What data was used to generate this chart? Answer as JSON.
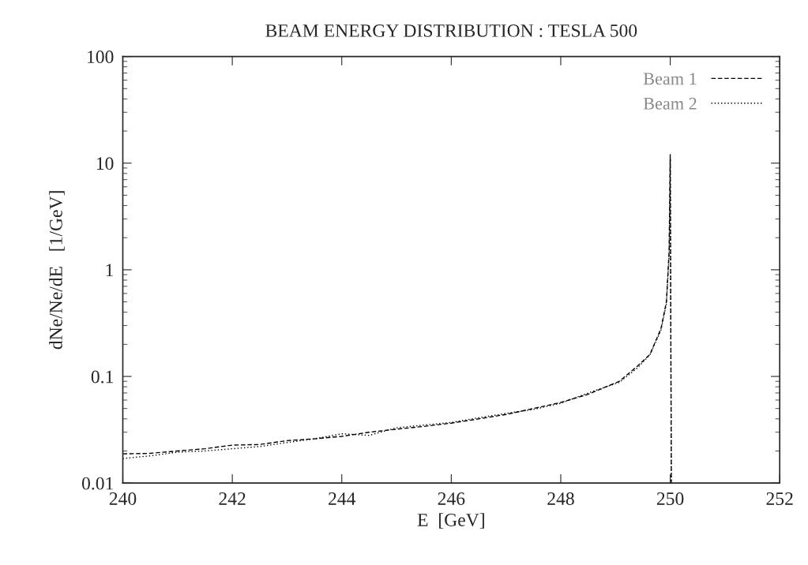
{
  "chart_data": {
    "type": "line",
    "title": "BEAM ENERGY DISTRIBUTION : TESLA 500",
    "xlabel": "E  [GeV]",
    "ylabel": "dNe/Ne/dE   [1/GeV]",
    "xlim": [
      240,
      252
    ],
    "xticks": [
      240,
      242,
      244,
      246,
      248,
      250,
      252
    ],
    "ylim": [
      0.01,
      100
    ],
    "yticks": [
      {
        "value": 0.01,
        "label": "0.01"
      },
      {
        "value": 0.1,
        "label": "0.1"
      },
      1,
      10,
      100
    ],
    "log": "y",
    "grid": false,
    "legend": "top right",
    "series": [
      {
        "name": "Beam 1",
        "color": "#000000",
        "line_style": "dashed",
        "x": [
          240,
          240.5,
          241,
          241.5,
          242,
          242.5,
          243,
          243.5,
          244,
          244.5,
          245,
          245.5,
          246,
          246.5,
          247,
          247.5,
          248,
          248.5,
          249.07,
          249.4,
          249.63,
          249.83,
          249.93,
          249.98,
          250,
          250.02
        ],
        "values": [
          0.0188,
          0.019,
          0.02,
          0.021,
          0.0227,
          0.023,
          0.025,
          0.026,
          0.0274,
          0.03,
          0.032,
          0.034,
          0.0365,
          0.04,
          0.044,
          0.05,
          0.057,
          0.068,
          0.09,
          0.125,
          0.161,
          0.28,
          0.5,
          1.5,
          12,
          0.01
        ]
      },
      {
        "name": "Beam 2",
        "color": "#000000",
        "line_style": "dotted",
        "x": [
          240,
          240.5,
          241,
          241.5,
          242,
          242.5,
          243,
          243.5,
          244,
          244.5,
          245,
          245.5,
          246,
          246.5,
          247,
          247.5,
          248,
          248.5,
          249.07,
          249.4,
          249.63,
          249.83,
          249.93,
          249.98,
          250,
          250.02
        ],
        "values": [
          0.017,
          0.018,
          0.0195,
          0.02,
          0.021,
          0.022,
          0.024,
          0.026,
          0.029,
          0.028,
          0.033,
          0.035,
          0.037,
          0.041,
          0.045,
          0.049,
          0.056,
          0.07,
          0.088,
          0.12,
          0.16,
          0.27,
          0.48,
          1.4,
          11,
          0.01
        ]
      }
    ]
  }
}
